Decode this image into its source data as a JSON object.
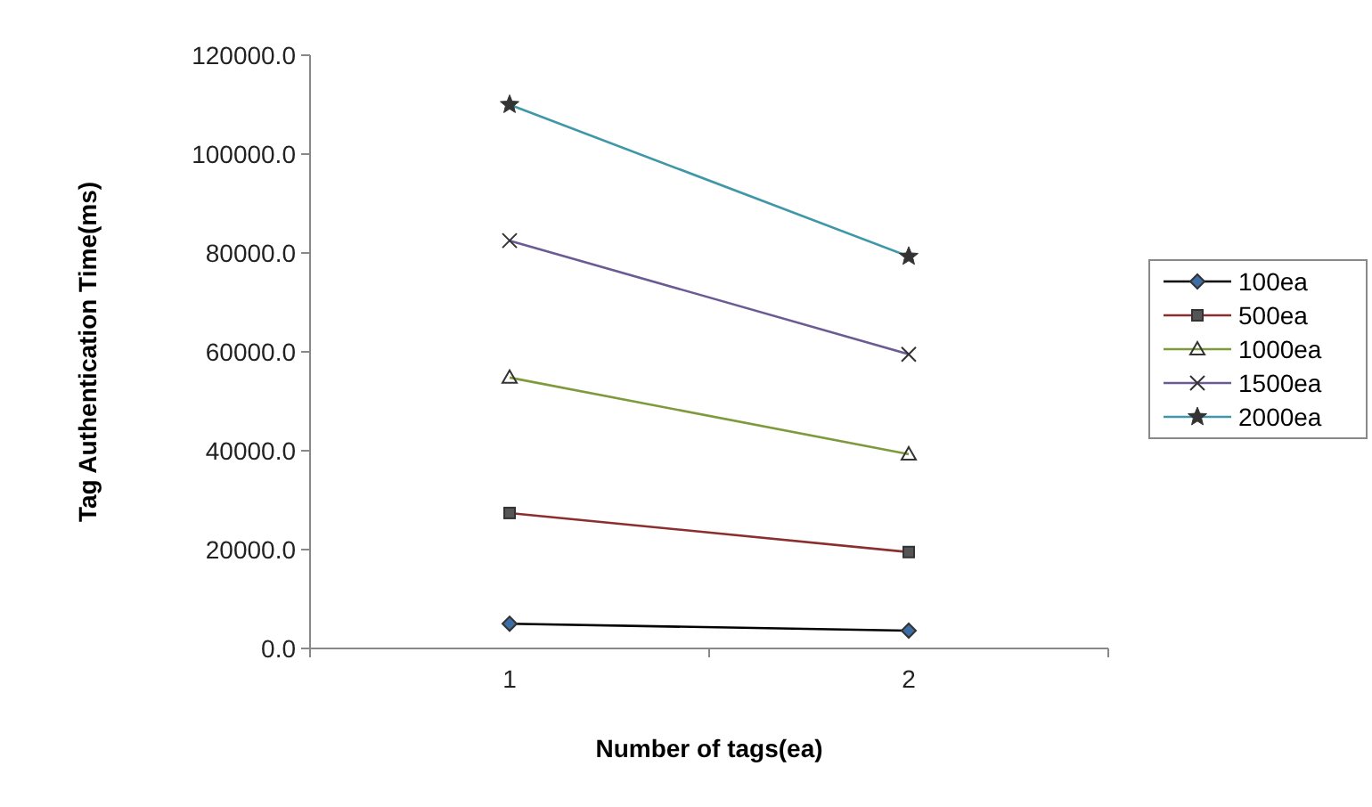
{
  "chart_data": {
    "type": "line",
    "xlabel": "Number of tags(ea)",
    "ylabel": "Tag Authentication Time(ms)",
    "categories": [
      "1",
      "2"
    ],
    "ylim": [
      0,
      120000
    ],
    "yticks": [
      {
        "value": 0,
        "label": "0.0"
      },
      {
        "value": 20000,
        "label": "20000.0"
      },
      {
        "value": 40000,
        "label": "40000.0"
      },
      {
        "value": 60000,
        "label": "60000.0"
      },
      {
        "value": 80000,
        "label": "80000.0"
      },
      {
        "value": 100000,
        "label": "100000.0"
      },
      {
        "value": 120000,
        "label": "120000.0"
      }
    ],
    "grid": false,
    "legend": "right",
    "line_style": "solid",
    "series": [
      {
        "name": "100ea",
        "color": "#000000",
        "marker": "diamond",
        "values": [
          5000,
          3600
        ]
      },
      {
        "name": "500ea",
        "color": "#8b2e2e",
        "marker": "square",
        "values": [
          27400,
          19500
        ]
      },
      {
        "name": "1000ea",
        "color": "#7f9a3c",
        "marker": "triangle",
        "values": [
          54800,
          39300
        ]
      },
      {
        "name": "1500ea",
        "color": "#6b5b95",
        "marker": "cross",
        "values": [
          82500,
          59500
        ]
      },
      {
        "name": "2000ea",
        "color": "#3f97a8",
        "marker": "star",
        "values": [
          110000,
          79300
        ]
      }
    ]
  }
}
